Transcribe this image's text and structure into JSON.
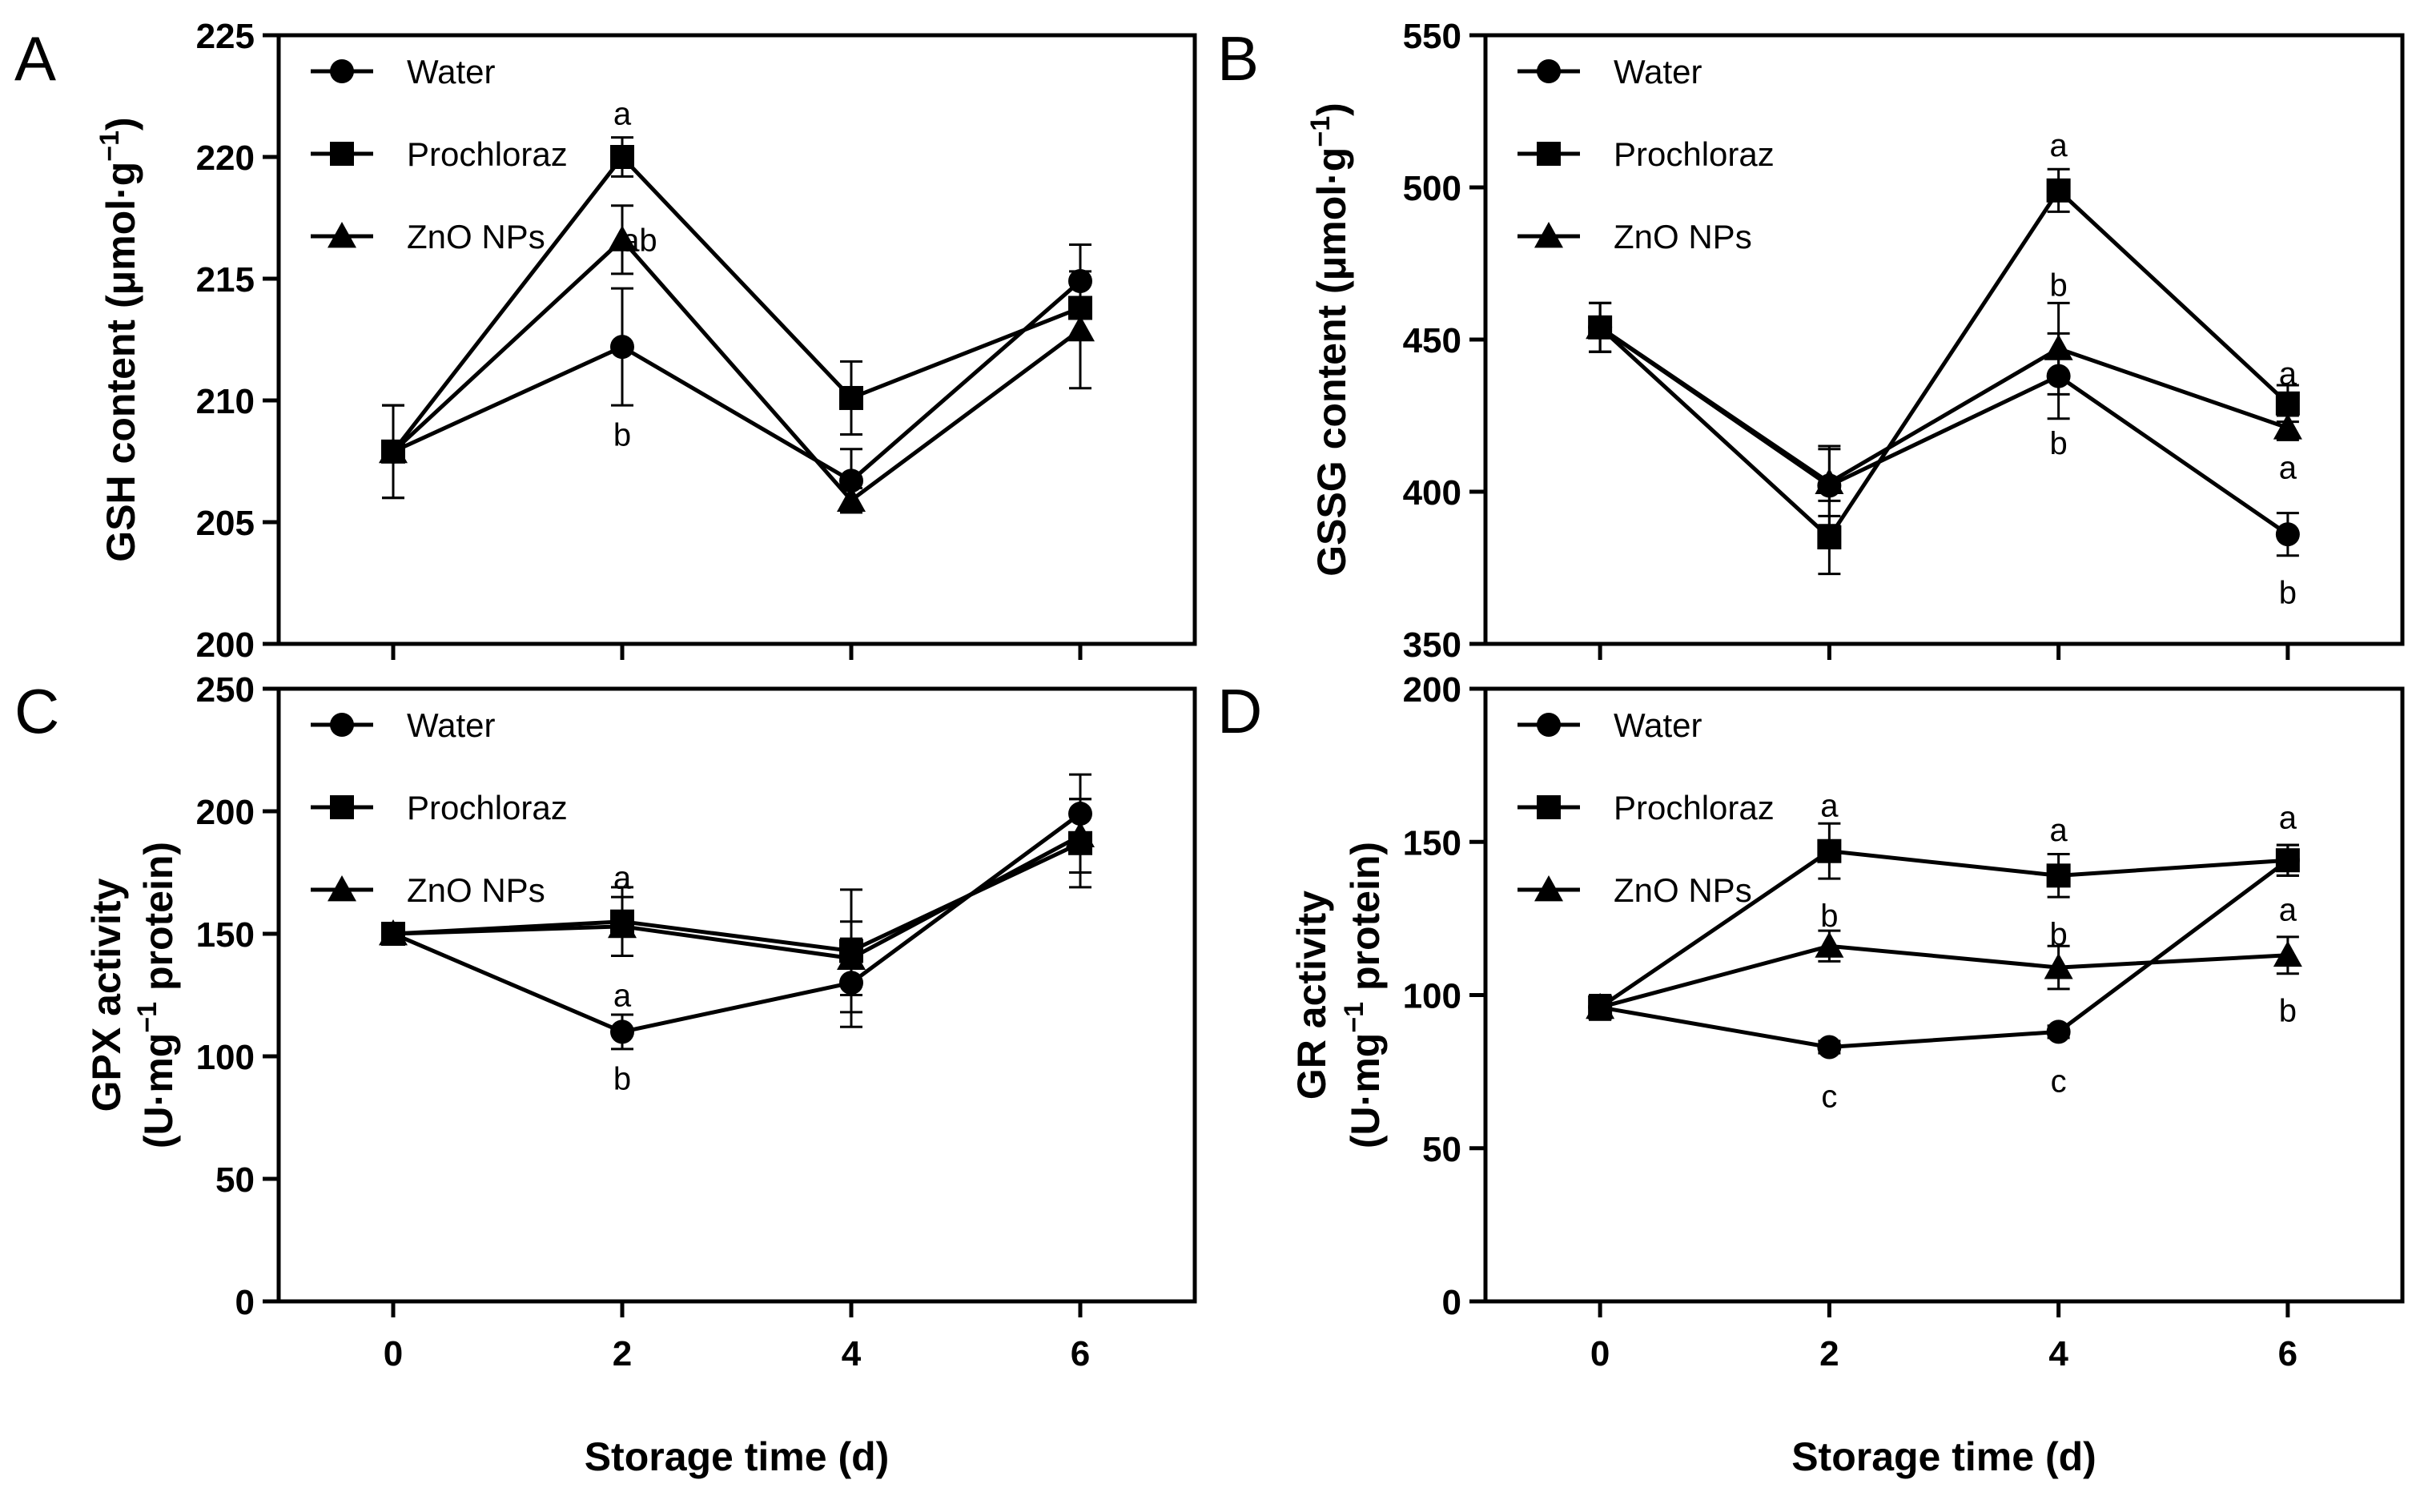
{
  "figure": {
    "x_title": "Storage time (d)",
    "legend": [
      "Water",
      "Prochloraz",
      "ZnO NPs"
    ]
  },
  "chart_data": [
    {
      "panel": "A",
      "type": "line",
      "ylabel": "GSH content (μmol·g⁻¹)",
      "ylabel_parts": {
        "main": "GSH content (μmol·g",
        "sup": "−1",
        "end": ")"
      },
      "x": [
        0,
        2,
        4,
        6
      ],
      "xlim": [
        -1,
        7
      ],
      "ylim": [
        200,
        225
      ],
      "yticks": [
        200,
        205,
        210,
        215,
        220,
        225
      ],
      "grid": false,
      "legend_position": "top-left",
      "series": [
        {
          "name": "Water",
          "marker": "circle",
          "values": [
            207.9,
            212.2,
            206.7,
            214.9
          ],
          "errors": [
            1.9,
            2.4,
            1.3,
            1.5
          ]
        },
        {
          "name": "Prochloraz",
          "marker": "square",
          "values": [
            207.9,
            220.0,
            210.1,
            213.8
          ],
          "errors": [
            1.9,
            0.8,
            1.5,
            1.2
          ]
        },
        {
          "name": "ZnO NPs",
          "marker": "triangle",
          "values": [
            207.9,
            216.6,
            205.9,
            212.9
          ],
          "errors": [
            1.9,
            1.4,
            0.5,
            2.4
          ]
        }
      ],
      "annotations": [
        {
          "x": 2,
          "y": 221.8,
          "text": "a"
        },
        {
          "x": 2.15,
          "y": 216.6,
          "text": "ab"
        },
        {
          "x": 2,
          "y": 208.6,
          "text": "b"
        }
      ]
    },
    {
      "panel": "B",
      "type": "line",
      "ylabel": "GSSG content (μmol·g⁻¹)",
      "ylabel_parts": {
        "main": "GSSG content (μmol·g",
        "sup": "−1",
        "end": ")"
      },
      "x": [
        0,
        2,
        4,
        6
      ],
      "xlim": [
        -1,
        7
      ],
      "ylim": [
        350,
        550
      ],
      "yticks": [
        350,
        400,
        450,
        500,
        550
      ],
      "grid": false,
      "legend_position": "top-left",
      "series": [
        {
          "name": "Water",
          "marker": "circle",
          "values": [
            454,
            402,
            438,
            386
          ],
          "errors": [
            8,
            13,
            14,
            7
          ]
        },
        {
          "name": "Prochloraz",
          "marker": "square",
          "values": [
            454,
            385,
            499,
            429
          ],
          "errors": [
            8,
            12,
            7,
            6
          ]
        },
        {
          "name": "ZnO NPs",
          "marker": "triangle",
          "values": [
            454,
            403,
            447,
            421
          ],
          "errors": [
            8,
            11,
            15,
            4
          ]
        }
      ],
      "annotations": [
        {
          "x": 4,
          "y": 514,
          "text": "a"
        },
        {
          "x": 4,
          "y": 468,
          "text": "b"
        },
        {
          "x": 4,
          "y": 416,
          "text": "b"
        },
        {
          "x": 6,
          "y": 439,
          "text": "a"
        },
        {
          "x": 6,
          "y": 408,
          "text": "a"
        },
        {
          "x": 6,
          "y": 367,
          "text": "b"
        }
      ]
    },
    {
      "panel": "C",
      "type": "line",
      "ylabel": "GPX activity (U·mg⁻¹ protein)",
      "ylabel_parts": {
        "line1": "GPX activity",
        "main": "(U·mg",
        "sup": "−1",
        "end": " protein)"
      },
      "x": [
        0,
        2,
        4,
        6
      ],
      "xlim": [
        -1,
        7
      ],
      "ylim": [
        0,
        250
      ],
      "yticks": [
        0,
        50,
        100,
        150,
        200,
        250
      ],
      "xticks": [
        0,
        2,
        4,
        6
      ],
      "grid": false,
      "legend_position": "top-left",
      "series": [
        {
          "name": "Water",
          "marker": "circle",
          "values": [
            150,
            110,
            130,
            199
          ],
          "errors": [
            3,
            7,
            18,
            16
          ]
        },
        {
          "name": "Prochloraz",
          "marker": "square",
          "values": [
            150,
            155,
            143,
            187
          ],
          "errors": [
            3,
            14,
            25,
            18
          ]
        },
        {
          "name": "ZnO NPs",
          "marker": "triangle",
          "values": [
            150,
            153,
            140,
            190
          ],
          "errors": [
            3,
            12,
            15,
            15
          ]
        }
      ],
      "annotations": [
        {
          "x": 2,
          "y": 173,
          "text": "a"
        },
        {
          "x": 2,
          "y": 125,
          "text": "a"
        },
        {
          "x": 2,
          "y": 91,
          "text": "b"
        }
      ]
    },
    {
      "panel": "D",
      "type": "line",
      "ylabel": "GR activity (U·mg⁻¹ protein)",
      "ylabel_parts": {
        "line1": "GR activity",
        "main": "(U·mg",
        "sup": "−1",
        "end": " protein)"
      },
      "x": [
        0,
        2,
        4,
        6
      ],
      "xlim": [
        -1,
        7
      ],
      "ylim": [
        0,
        200
      ],
      "yticks": [
        0,
        50,
        100,
        150,
        200
      ],
      "xticks": [
        0,
        2,
        4,
        6
      ],
      "grid": false,
      "legend_position": "top-left",
      "series": [
        {
          "name": "Water",
          "marker": "circle",
          "values": [
            96,
            83,
            88,
            144
          ],
          "errors": [
            4,
            2,
            2,
            5
          ]
        },
        {
          "name": "Prochloraz",
          "marker": "square",
          "values": [
            96,
            147,
            139,
            144
          ],
          "errors": [
            4,
            9,
            7,
            5
          ]
        },
        {
          "name": "ZnO NPs",
          "marker": "triangle",
          "values": [
            96,
            116,
            109,
            113
          ],
          "errors": [
            4,
            5,
            7,
            6
          ]
        }
      ],
      "annotations": [
        {
          "x": 2,
          "y": 162,
          "text": "a"
        },
        {
          "x": 2,
          "y": 126,
          "text": "b"
        },
        {
          "x": 2,
          "y": 67,
          "text": "c"
        },
        {
          "x": 4,
          "y": 154,
          "text": "a"
        },
        {
          "x": 4,
          "y": 120,
          "text": "b"
        },
        {
          "x": 4,
          "y": 72,
          "text": "c"
        },
        {
          "x": 6,
          "y": 158,
          "text": "a"
        },
        {
          "x": 6,
          "y": 128,
          "text": "a"
        },
        {
          "x": 6,
          "y": 95,
          "text": "b"
        }
      ]
    }
  ]
}
